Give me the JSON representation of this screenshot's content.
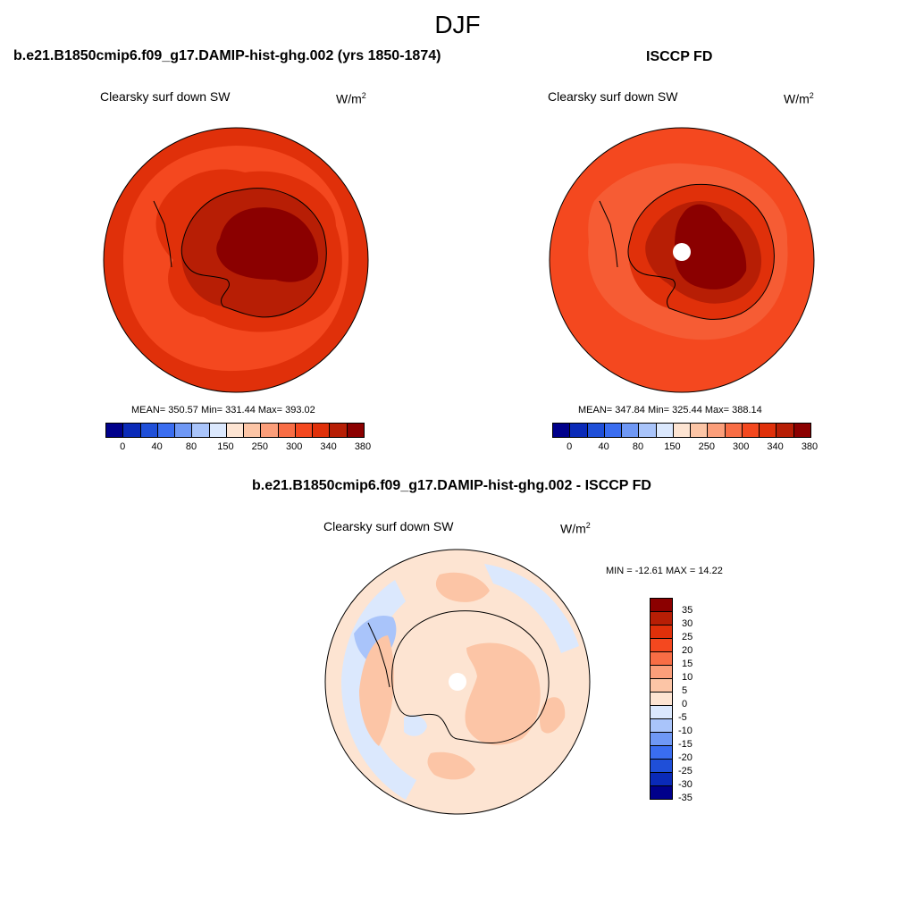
{
  "main_title": "DJF",
  "panels": [
    {
      "title": "b.e21.B1850cmip6.f09_g17.DAMIP-hist-ghg.002 (yrs 1850-1874)",
      "variable": "Clearsky surf down SW",
      "units_base": "W/m",
      "units_exp": "2",
      "stats": "MEAN= 350.57  Min= 331.44  Max= 393.02",
      "colorbar_ticks": [
        "0",
        "40",
        "80",
        "150",
        "250",
        "300",
        "340",
        "380"
      ]
    },
    {
      "title": "ISCCP FD",
      "variable": "Clearsky surf down SW",
      "units_base": "W/m",
      "units_exp": "2",
      "stats": "MEAN= 347.84  Min= 325.44  Max= 388.14",
      "colorbar_ticks": [
        "0",
        "40",
        "80",
        "150",
        "250",
        "300",
        "340",
        "380"
      ]
    },
    {
      "title": "b.e21.B1850cmip6.f09_g17.DAMIP-hist-ghg.002 - ISCCP FD",
      "variable": "Clearsky surf down SW",
      "units_base": "W/m",
      "units_exp": "2",
      "stats": "MIN = -12.61 MAX =  14.22",
      "colorbar_ticks": [
        "35",
        "30",
        "25",
        "20",
        "15",
        "10",
        "5",
        "0",
        "-5",
        "-10",
        "-15",
        "-20",
        "-25",
        "-30",
        "-35"
      ]
    }
  ],
  "colors": {
    "abs_scale": [
      "#00008b",
      "#0a2ab8",
      "#1f4fd8",
      "#3a6df0",
      "#6f98f5",
      "#a9c4fa",
      "#dbe8fd",
      "#fde4d2",
      "#fcc5a6",
      "#fb9e7a",
      "#f86d45",
      "#f4481f",
      "#e0300a",
      "#b71e05",
      "#8b0000"
    ],
    "diff_scale": [
      "#8b0000",
      "#b71e05",
      "#e0300a",
      "#f4481f",
      "#f86d45",
      "#fb9e7a",
      "#fcc5a6",
      "#fde4d2",
      "#dbe8fd",
      "#a9c4fa",
      "#6f98f5",
      "#3a6df0",
      "#1f4fd8",
      "#0a2ab8",
      "#00008b"
    ],
    "ocean_outer": "#e0300a",
    "ocean_inner": "#f4481f",
    "ice_ring": "#b71e05",
    "plateau": "#8b0000",
    "diff_base": "#fde4d2",
    "diff_warm": "#fcc5a6",
    "diff_cool": "#dbe8fd",
    "diff_cooler": "#a9c4fa"
  }
}
